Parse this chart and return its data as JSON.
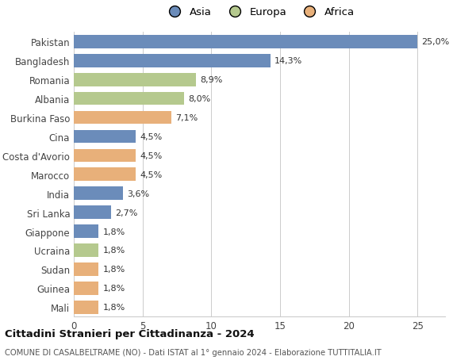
{
  "categories": [
    "Pakistan",
    "Bangladesh",
    "Romania",
    "Albania",
    "Burkina Faso",
    "Cina",
    "Costa d'Avorio",
    "Marocco",
    "India",
    "Sri Lanka",
    "Giappone",
    "Ucraina",
    "Sudan",
    "Guinea",
    "Mali"
  ],
  "values": [
    25.0,
    14.3,
    8.9,
    8.0,
    7.1,
    4.5,
    4.5,
    4.5,
    3.6,
    2.7,
    1.8,
    1.8,
    1.8,
    1.8,
    1.8
  ],
  "continents": [
    "Asia",
    "Asia",
    "Europa",
    "Europa",
    "Africa",
    "Asia",
    "Africa",
    "Africa",
    "Asia",
    "Asia",
    "Asia",
    "Europa",
    "Africa",
    "Africa",
    "Africa"
  ],
  "continent_colors": {
    "Asia": "#6b8cba",
    "Europa": "#b5c98e",
    "Africa": "#e8b07a"
  },
  "labels": [
    "25,0%",
    "14,3%",
    "8,9%",
    "8,0%",
    "7,1%",
    "4,5%",
    "4,5%",
    "4,5%",
    "3,6%",
    "2,7%",
    "1,8%",
    "1,8%",
    "1,8%",
    "1,8%",
    "1,8%"
  ],
  "xlim": [
    0,
    27
  ],
  "xticks": [
    0,
    5,
    10,
    15,
    20,
    25
  ],
  "title": "Cittadini Stranieri per Cittadinanza - 2024",
  "subtitle": "COMUNE DI CASALBELTRAME (NO) - Dati ISTAT al 1° gennaio 2024 - Elaborazione TUTTITALIA.IT",
  "legend_labels": [
    "Asia",
    "Europa",
    "Africa"
  ],
  "legend_colors": [
    "#6b8cba",
    "#b5c98e",
    "#e8b07a"
  ],
  "background_color": "#ffffff",
  "bar_height": 0.7,
  "figsize": [
    6.0,
    4.6
  ],
  "dpi": 100
}
